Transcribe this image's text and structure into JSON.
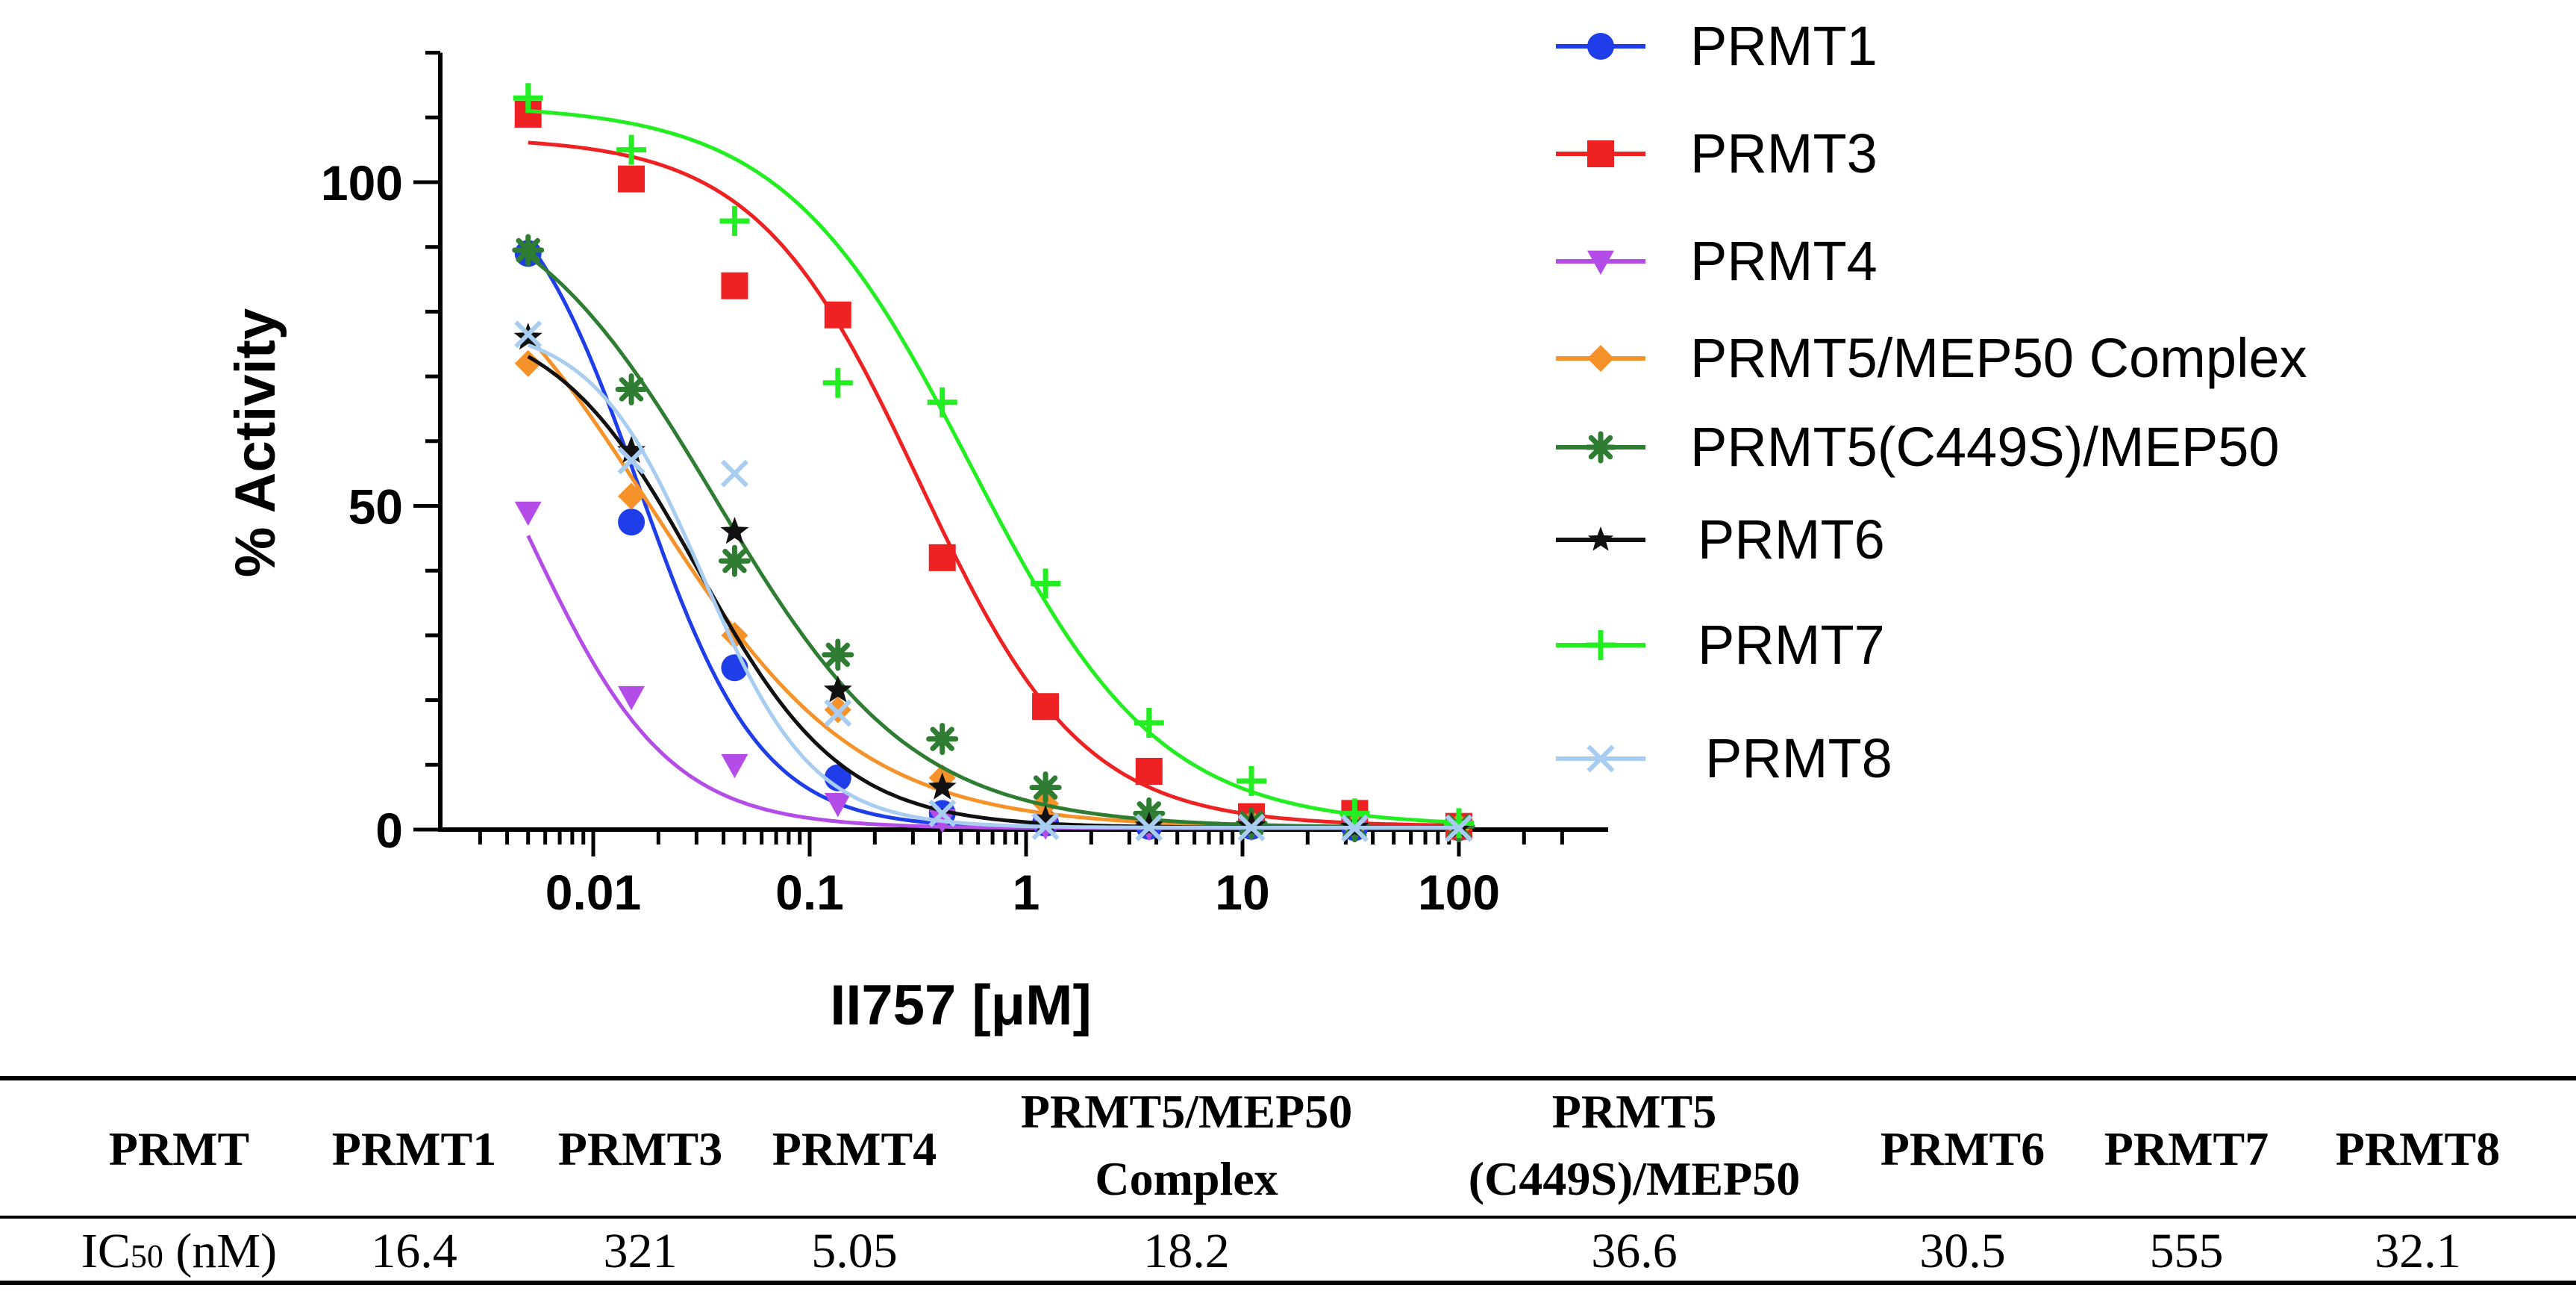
{
  "chart_data": {
    "type": "line",
    "xscale": "log",
    "xlabel": "II757 [μM]",
    "ylabel": "% Activity",
    "xlim": [
      0.0025,
      300
    ],
    "ylim": [
      0,
      120
    ],
    "xticks": [
      0.01,
      0.1,
      1,
      10,
      100
    ],
    "xtick_labels": [
      "0.01",
      "0.1",
      "1",
      "10",
      "100"
    ],
    "yticks": [
      0,
      50,
      100
    ],
    "ytick_labels": [
      "0",
      "50",
      "100"
    ],
    "x": [
      0.005,
      0.015,
      0.045,
      0.135,
      0.41,
      1.23,
      3.7,
      11,
      33,
      100
    ],
    "legend_position": "right",
    "series": [
      {
        "name": "PRMT1",
        "color": "#1f3de8",
        "marker": "circle",
        "values": [
          89,
          47.5,
          25,
          8,
          2.5,
          1,
          0.5,
          0.5,
          0.3,
          0.3
        ],
        "fit": {
          "top": 105,
          "bottom": 0.2,
          "ic50": 0.0164,
          "hill": 1.55
        }
      },
      {
        "name": "PRMT3",
        "color": "#ee2222",
        "marker": "square",
        "values": [
          110.5,
          100.5,
          84,
          79.5,
          42,
          19,
          9,
          2,
          2.5,
          0.5
        ],
        "fit": {
          "top": 107,
          "bottom": 0.5,
          "ic50": 0.321,
          "hill": 1.15
        }
      },
      {
        "name": "PRMT4",
        "color": "#b44de8",
        "marker": "triangle-down",
        "values": [
          49,
          20.5,
          10,
          4,
          1.5,
          0.5,
          0.3,
          0.3,
          0.2,
          0.2
        ],
        "fit": {
          "top": 90,
          "bottom": 0.2,
          "ic50": 0.00505,
          "hill": 1.35
        }
      },
      {
        "name": "PRMT5/MEP50 Complex",
        "color": "#f5922a",
        "marker": "diamond",
        "values": [
          72,
          51.5,
          30,
          18.5,
          8,
          4,
          2,
          1,
          0.5,
          0.5
        ],
        "fit": {
          "top": 100,
          "bottom": 0.3,
          "ic50": 0.0182,
          "hill": 0.9
        }
      },
      {
        "name": "PRMT5(C449S)/MEP50",
        "color": "#2e7d32",
        "marker": "asterisk",
        "values": [
          89.5,
          68,
          41.5,
          27,
          14,
          6.5,
          2.5,
          1,
          0.5,
          0.5
        ],
        "fit": {
          "top": 102,
          "bottom": 0.3,
          "ic50": 0.0366,
          "hill": 0.95
        }
      },
      {
        "name": "PRMT6",
        "color": "#111111",
        "marker": "star",
        "values": [
          76,
          58.5,
          46,
          21.5,
          6.5,
          1.5,
          0.5,
          0.5,
          0.3,
          0.3
        ],
        "fit": {
          "top": 80,
          "bottom": 0.3,
          "ic50": 0.0305,
          "hill": 1.3
        }
      },
      {
        "name": "PRMT7",
        "color": "#22ee22",
        "marker": "plus",
        "values": [
          113,
          105,
          94,
          69,
          66,
          38,
          16.5,
          7.5,
          2.5,
          1
        ],
        "fit": {
          "top": 112,
          "bottom": 0.5,
          "ic50": 0.555,
          "hill": 1.0
        }
      },
      {
        "name": "PRMT8",
        "color": "#a8cdf0",
        "marker": "x",
        "values": [
          76.5,
          57,
          55,
          18,
          2.5,
          0.5,
          0.3,
          0.3,
          0.2,
          0.2
        ],
        "fit": {
          "top": 78,
          "bottom": 0.3,
          "ic50": 0.0321,
          "hill": 1.7
        }
      }
    ],
    "table": {
      "headers": [
        {
          "id": "prmt",
          "lines": [
            "PRMT"
          ]
        },
        {
          "id": "prmt1",
          "lines": [
            "PRMT1"
          ]
        },
        {
          "id": "prmt3",
          "lines": [
            "PRMT3"
          ]
        },
        {
          "id": "prmt4",
          "lines": [
            "PRMT4"
          ]
        },
        {
          "id": "prmt5-mep50",
          "lines": [
            "PRMT5/MEP50",
            "Complex"
          ]
        },
        {
          "id": "prmt5-c449s",
          "lines": [
            "PRMT5",
            "(C449S)/MEP50"
          ]
        },
        {
          "id": "prmt6",
          "lines": [
            "PRMT6"
          ]
        },
        {
          "id": "prmt7",
          "lines": [
            "PRMT7"
          ]
        },
        {
          "id": "prmt8",
          "lines": [
            "PRMT8"
          ]
        }
      ],
      "row_label": {
        "main": "IC",
        "subscript": "50",
        "unit": " (nM)"
      },
      "values": [
        "16.4",
        "321",
        "5.05",
        "18.2",
        "36.6",
        "30.5",
        "555",
        "32.1"
      ]
    }
  }
}
